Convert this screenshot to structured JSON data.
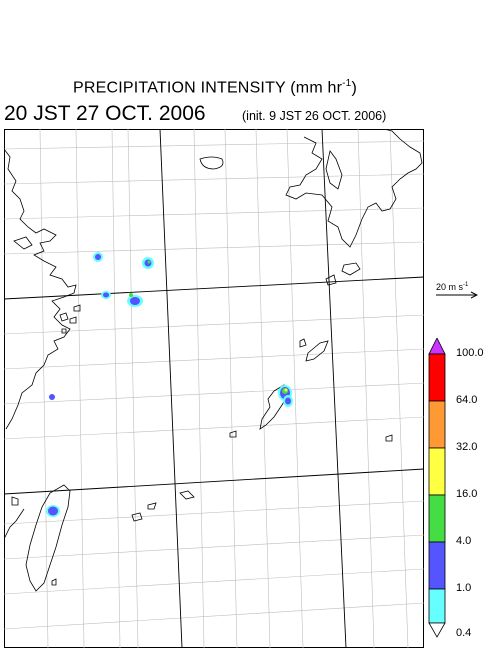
{
  "header": {
    "title_main": "PRECIPITATION INTENSITY (mm hr",
    "title_sup": "-1",
    "title_close": ")",
    "valid_time": "20 JST 27 OCT. 2006",
    "init_time": "(init. 9 JST 26 OCT. 2006)"
  },
  "wind_scale": {
    "label_main": "20 m s",
    "label_sup": "-1"
  },
  "legend": {
    "ticks": [
      "100.0",
      "64.0",
      "32.0",
      "16.0",
      "4.0",
      "1.0",
      "0.4"
    ],
    "colors": [
      "#cc33ff",
      "#ff0000",
      "#ff9933",
      "#ffff44",
      "#44dd44",
      "#5555ff",
      "#66ffff",
      "#ffffff"
    ]
  },
  "palette": {
    "cyan": "#66ffff",
    "blue": "#5555ff",
    "green": "#44dd44",
    "yellow": "#ffff44"
  }
}
